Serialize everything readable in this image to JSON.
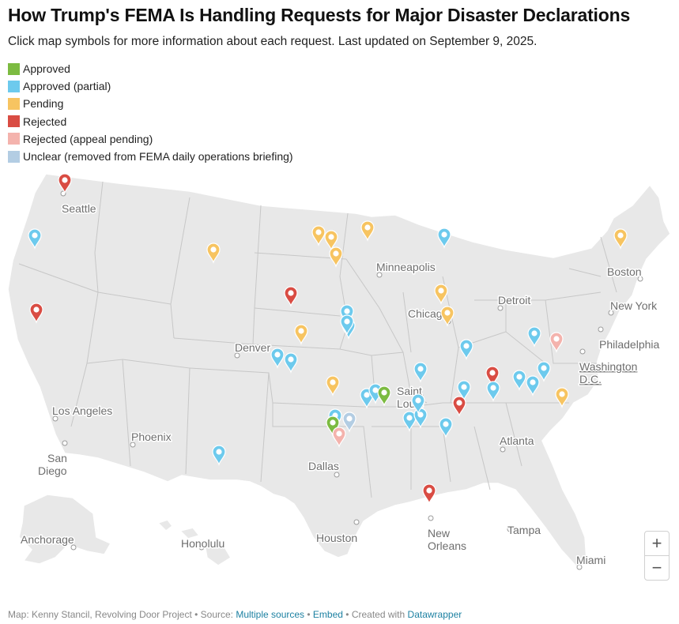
{
  "title": "How Trump's FEMA Is Handling Requests for Major Disaster Declarations",
  "subtitle": "Click map symbols for more information about each request. Last updated on September 9, 2025.",
  "legend": [
    {
      "label": "Approved",
      "color": "#7cbb41"
    },
    {
      "label": "Approved (partial)",
      "color": "#6dcaed"
    },
    {
      "label": "Pending",
      "color": "#f7c461"
    },
    {
      "label": "Rejected",
      "color": "#d94c43"
    },
    {
      "label": "Rejected (appeal pending)",
      "color": "#f4b3ad"
    },
    {
      "label": "Unclear (removed from FEMA daily operations briefing)",
      "color": "#b3cde3"
    }
  ],
  "cities": [
    {
      "name": "Seattle"
    },
    {
      "name": "Minneapolis"
    },
    {
      "name": "Boston"
    },
    {
      "name": "Detroit"
    },
    {
      "name": "Chicago"
    },
    {
      "name": "New York"
    },
    {
      "name": "Denver"
    },
    {
      "name": "Philadelphia"
    },
    {
      "name": "Washington D.C."
    },
    {
      "name": "Saint Louis"
    },
    {
      "name": "Los Angeles"
    },
    {
      "name": "Phoenix"
    },
    {
      "name": "San Diego"
    },
    {
      "name": "Atlanta"
    },
    {
      "name": "Dallas"
    },
    {
      "name": "New Orleans"
    },
    {
      "name": "Houston"
    },
    {
      "name": "Tampa"
    },
    {
      "name": "Anchorage"
    },
    {
      "name": "Honolulu"
    },
    {
      "name": "Miami"
    }
  ],
  "markers": [
    {
      "status": "rejected"
    },
    {
      "status": "approved_partial"
    },
    {
      "status": "rejected"
    },
    {
      "status": "pending"
    },
    {
      "status": "pending"
    },
    {
      "status": "pending"
    },
    {
      "status": "pending"
    },
    {
      "status": "pending"
    },
    {
      "status": "approved_partial"
    },
    {
      "status": "pending"
    },
    {
      "status": "rejected"
    },
    {
      "status": "pending"
    },
    {
      "status": "pending"
    },
    {
      "status": "pending"
    },
    {
      "status": "approved_partial"
    },
    {
      "status": "approved_partial"
    },
    {
      "status": "approved_partial"
    },
    {
      "status": "approved_partial"
    },
    {
      "status": "pending"
    },
    {
      "status": "approved_partial"
    },
    {
      "status": "approved_partial"
    },
    {
      "status": "approved_partial"
    },
    {
      "status": "approved"
    },
    {
      "status": "approved_partial"
    },
    {
      "status": "approved"
    },
    {
      "status": "rejected_appeal"
    },
    {
      "status": "unclear"
    },
    {
      "status": "approved_partial"
    },
    {
      "status": "approved_partial"
    },
    {
      "status": "approved_partial"
    },
    {
      "status": "approved_partial"
    },
    {
      "status": "approved_partial"
    },
    {
      "status": "rejected"
    },
    {
      "status": "approved_partial"
    },
    {
      "status": "rejected"
    },
    {
      "status": "approved_partial"
    },
    {
      "status": "approved_partial"
    },
    {
      "status": "approved_partial"
    },
    {
      "status": "rejected_appeal"
    },
    {
      "status": "pending"
    },
    {
      "status": "approved_partial"
    },
    {
      "status": "approved_partial"
    },
    {
      "status": "approved_partial"
    },
    {
      "status": "approved_partial"
    },
    {
      "status": "rejected"
    }
  ],
  "status_colors": {
    "approved": "#7cbb41",
    "approved_partial": "#6dcaed",
    "pending": "#f7c461",
    "rejected": "#d94c43",
    "rejected_appeal": "#f4b3ad",
    "unclear": "#b3cde3"
  },
  "zoom": {
    "in": "+",
    "out": "−"
  },
  "footer": {
    "prefix": "Map: Kenny Stancil, Revolving Door Project • Source: ",
    "source_link": "Multiple sources",
    "sep1": " • ",
    "embed_link": "Embed",
    "created": "  • Created with ",
    "tool_link": "Datawrapper"
  }
}
